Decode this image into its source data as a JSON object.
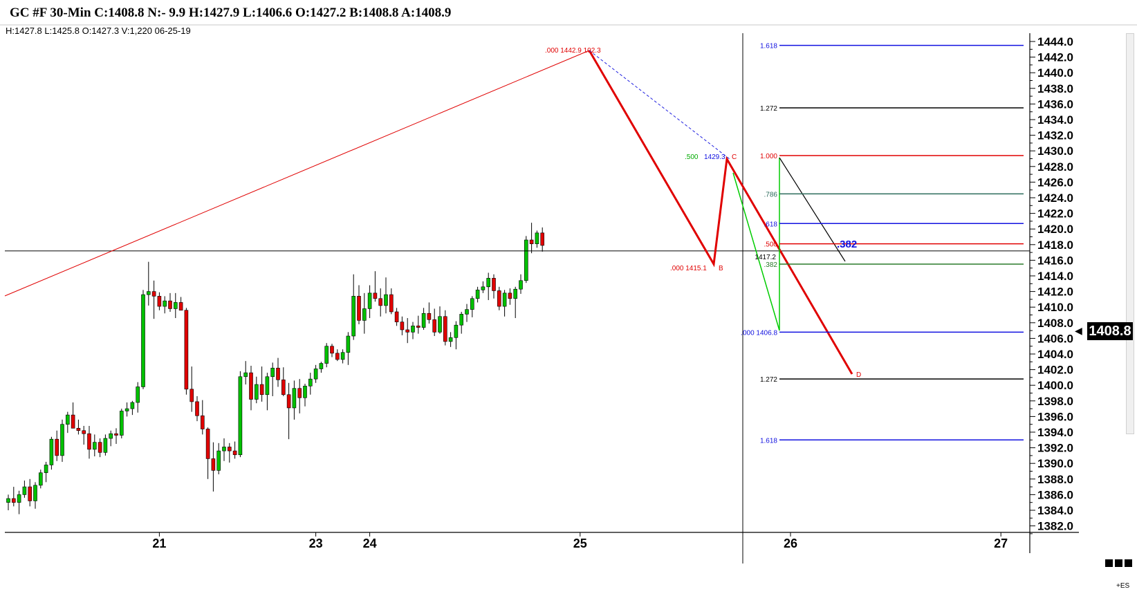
{
  "header": {
    "title": "GC #F 30-Min C:1408.8 N:- 9.9 H:1427.9 L:1406.6 O:1427.2 B:1408.8 A:1408.9",
    "bar_info": "H:1427.8  L:1425.8  O:1427.3  V:1,220  06-25-19"
  },
  "price_scale": {
    "last_price": "1408.8",
    "symbol_tag": "+ES"
  },
  "chart_data": {
    "type": "candlestick",
    "symbol": "GC #F",
    "interval": "30-Min",
    "ylim": [
      1381,
      1446
    ],
    "y_ticks": [
      1444.0,
      1442.0,
      1440.0,
      1438.0,
      1436.0,
      1434.0,
      1432.0,
      1430.0,
      1428.0,
      1426.0,
      1424.0,
      1422.0,
      1420.0,
      1418.0,
      1416.0,
      1414.0,
      1412.0,
      1410.0,
      1408.0,
      1406.0,
      1404.0,
      1402.0,
      1400.0,
      1398.0,
      1396.0,
      1394.0,
      1392.0,
      1390.0,
      1388.0,
      1386.0,
      1384.0,
      1382.0
    ],
    "x_labels": [
      {
        "label": "21",
        "bar": 28
      },
      {
        "label": "23",
        "bar": 57
      },
      {
        "label": "24",
        "bar": 67
      },
      {
        "label": "25",
        "bar": 106
      },
      {
        "label": "26",
        "bar": 145
      },
      {
        "label": "27",
        "bar": 184
      }
    ],
    "bars": [
      [
        1385,
        1386,
        1384,
        1385.5
      ],
      [
        1385.5,
        1387,
        1384.5,
        1385
      ],
      [
        1385,
        1386.5,
        1383.5,
        1386
      ],
      [
        1386,
        1387.8,
        1385.6,
        1387
      ],
      [
        1387,
        1388,
        1384.5,
        1385.2
      ],
      [
        1385.2,
        1387.6,
        1384.2,
        1387.2
      ],
      [
        1387.2,
        1389.2,
        1386.8,
        1388.8
      ],
      [
        1388.8,
        1390.2,
        1387.6,
        1389.8
      ],
      [
        1389.8,
        1393.4,
        1389.2,
        1393.1
      ],
      [
        1393.1,
        1394.2,
        1390.3,
        1391
      ],
      [
        1391,
        1395.6,
        1390.2,
        1395
      ],
      [
        1395,
        1396.6,
        1393.9,
        1396.2
      ],
      [
        1396.2,
        1397.8,
        1394.8,
        1394.5
      ],
      [
        1394.5,
        1395.6,
        1393.7,
        1394.2
      ],
      [
        1394.2,
        1394.8,
        1392.4,
        1393.8
      ],
      [
        1393.8,
        1394.8,
        1390.6,
        1391.8
      ],
      [
        1391.8,
        1393.7,
        1390.9,
        1392.7
      ],
      [
        1392.7,
        1393.2,
        1390.8,
        1391.4
      ],
      [
        1391.4,
        1393.7,
        1391,
        1393.2
      ],
      [
        1393.2,
        1394.2,
        1392.2,
        1393.8
      ],
      [
        1393.8,
        1394.5,
        1392.5,
        1393.6
      ],
      [
        1393.6,
        1397,
        1393.2,
        1396.7
      ],
      [
        1396.7,
        1397.8,
        1396,
        1397
      ],
      [
        1397,
        1398,
        1396.2,
        1397.8
      ],
      [
        1397.8,
        1400.4,
        1396.5,
        1399.8
      ],
      [
        1399.8,
        1412.2,
        1399.5,
        1411.6
      ],
      [
        1411.6,
        1415.8,
        1410.2,
        1412
      ],
      [
        1412,
        1413.4,
        1408.5,
        1411.4
      ],
      [
        1411.4,
        1411.9,
        1409.6,
        1410.1
      ],
      [
        1410.1,
        1411.4,
        1409.2,
        1410.8
      ],
      [
        1410.8,
        1411.8,
        1409.4,
        1409.8
      ],
      [
        1409.8,
        1411.8,
        1408.6,
        1410.6
      ],
      [
        1410.6,
        1411.3,
        1409.6,
        1409.6
      ],
      [
        1409.6,
        1409.9,
        1398.8,
        1399.5
      ],
      [
        1399.5,
        1402.4,
        1396.6,
        1397.9
      ],
      [
        1397.9,
        1398.6,
        1395.4,
        1396.1
      ],
      [
        1396.1,
        1398.1,
        1393.7,
        1394.4
      ],
      [
        1394.4,
        1394.6,
        1388,
        1390.6
      ],
      [
        1390.6,
        1392.7,
        1386.4,
        1389.1
      ],
      [
        1389.1,
        1392.6,
        1388.6,
        1391.6
      ],
      [
        1391.6,
        1393.2,
        1390.3,
        1392.1
      ],
      [
        1392.1,
        1392.6,
        1390.1,
        1391.6
      ],
      [
        1391.6,
        1392.8,
        1390.6,
        1391.1
      ],
      [
        1391.1,
        1401.8,
        1390.8,
        1401.1
      ],
      [
        1401.1,
        1403.1,
        1400.1,
        1401.6
      ],
      [
        1401.6,
        1402.5,
        1396.8,
        1398.2
      ],
      [
        1398.2,
        1401.1,
        1397.7,
        1400.1
      ],
      [
        1400.1,
        1402.4,
        1397.9,
        1398.8
      ],
      [
        1398.8,
        1401.6,
        1396.8,
        1401.1
      ],
      [
        1401.1,
        1402.9,
        1398.6,
        1402.2
      ],
      [
        1402.2,
        1403.5,
        1399.8,
        1400.7
      ],
      [
        1400.7,
        1402.3,
        1398.6,
        1398.8
      ],
      [
        1398.8,
        1400.3,
        1393.1,
        1397.1
      ],
      [
        1397.1,
        1400.6,
        1395.6,
        1399.6
      ],
      [
        1399.6,
        1400.8,
        1396.4,
        1398.4
      ],
      [
        1398.4,
        1400.2,
        1397.3,
        1399.9
      ],
      [
        1399.9,
        1401.6,
        1398.8,
        1400.8
      ],
      [
        1400.8,
        1402.6,
        1400.3,
        1402.1
      ],
      [
        1402.1,
        1403,
        1401.6,
        1402.8
      ],
      [
        1402.8,
        1405.4,
        1402.3,
        1405
      ],
      [
        1405,
        1405.3,
        1403.6,
        1404.1
      ],
      [
        1404.1,
        1404.6,
        1403.1,
        1403.3
      ],
      [
        1403.3,
        1404.6,
        1402.8,
        1404.2
      ],
      [
        1404.2,
        1406.8,
        1402.6,
        1406.3
      ],
      [
        1406.3,
        1414.2,
        1405.8,
        1411.4
      ],
      [
        1411.4,
        1412.8,
        1407.8,
        1408.3
      ],
      [
        1408.3,
        1411.8,
        1406.6,
        1409.8
      ],
      [
        1409.8,
        1412.8,
        1408.6,
        1411.8
      ],
      [
        1411.8,
        1414.6,
        1410.7,
        1411.1
      ],
      [
        1411.1,
        1412.4,
        1408.8,
        1410.2
      ],
      [
        1410.2,
        1413.8,
        1409.2,
        1411.6
      ],
      [
        1411.6,
        1412.4,
        1409.1,
        1409.4
      ],
      [
        1409.4,
        1409.9,
        1407.6,
        1408.1
      ],
      [
        1408.1,
        1408.8,
        1406.4,
        1407.1
      ],
      [
        1407.1,
        1408.6,
        1405.4,
        1406.8
      ],
      [
        1406.8,
        1408.1,
        1405.9,
        1407.6
      ],
      [
        1407.6,
        1408.9,
        1406.6,
        1407.4
      ],
      [
        1407.4,
        1409.9,
        1407.1,
        1409.2
      ],
      [
        1409.2,
        1410.6,
        1407.9,
        1408.4
      ],
      [
        1408.4,
        1409.8,
        1406.3,
        1406.8
      ],
      [
        1406.8,
        1410.1,
        1406.6,
        1408.8
      ],
      [
        1408.8,
        1409.6,
        1405.1,
        1405.6
      ],
      [
        1405.6,
        1406.8,
        1404.9,
        1406.1
      ],
      [
        1406.1,
        1408.2,
        1404.6,
        1407.7
      ],
      [
        1407.7,
        1409.4,
        1406.6,
        1409.1
      ],
      [
        1409.1,
        1410.4,
        1408.1,
        1409.7
      ],
      [
        1409.7,
        1411.4,
        1408.7,
        1411.1
      ],
      [
        1411.1,
        1412.6,
        1410.6,
        1412.2
      ],
      [
        1412.2,
        1413.3,
        1411.8,
        1412.6
      ],
      [
        1412.6,
        1414.4,
        1410.9,
        1413.7
      ],
      [
        1413.7,
        1414.2,
        1411.1,
        1412.1
      ],
      [
        1412.1,
        1412.6,
        1409.6,
        1410.1
      ],
      [
        1410.1,
        1412.2,
        1408.8,
        1411.8
      ],
      [
        1411.8,
        1412.4,
        1410.3,
        1411.1
      ],
      [
        1411.1,
        1412.6,
        1408.6,
        1412.3
      ],
      [
        1412.3,
        1414.2,
        1411.7,
        1413.4
      ],
      [
        1413.4,
        1419.1,
        1413.1,
        1418.6
      ],
      [
        1418.6,
        1420.8,
        1416.9,
        1418.1
      ],
      [
        1418.1,
        1419.8,
        1417.6,
        1419.5
      ],
      [
        1419.5,
        1420.2,
        1417.1,
        1417.9
      ]
    ]
  },
  "annotations": {
    "fib_top": ".000  1442.9  102.3",
    "fib_b": ".000  1415.1",
    "point_b": "B",
    "point_c": "C",
    "point_d": "D",
    "fib_500": ".500",
    "fib_500_value": "1429.3",
    "fib_mid_500": ".500",
    "fib_mid_618": ".618",
    "fib_mid_382": ".382",
    "fib_786": ".786",
    "cross_value": "1417.2",
    "fib_382_big": ".382",
    "fib_base": ".000  1406.8",
    "ext_1618_top": "1.618",
    "ext_1272_top": "1.272",
    "ext_1000": "1.000",
    "ext_1272_bottom": "1.272",
    "ext_1618_bottom": "1.618"
  }
}
